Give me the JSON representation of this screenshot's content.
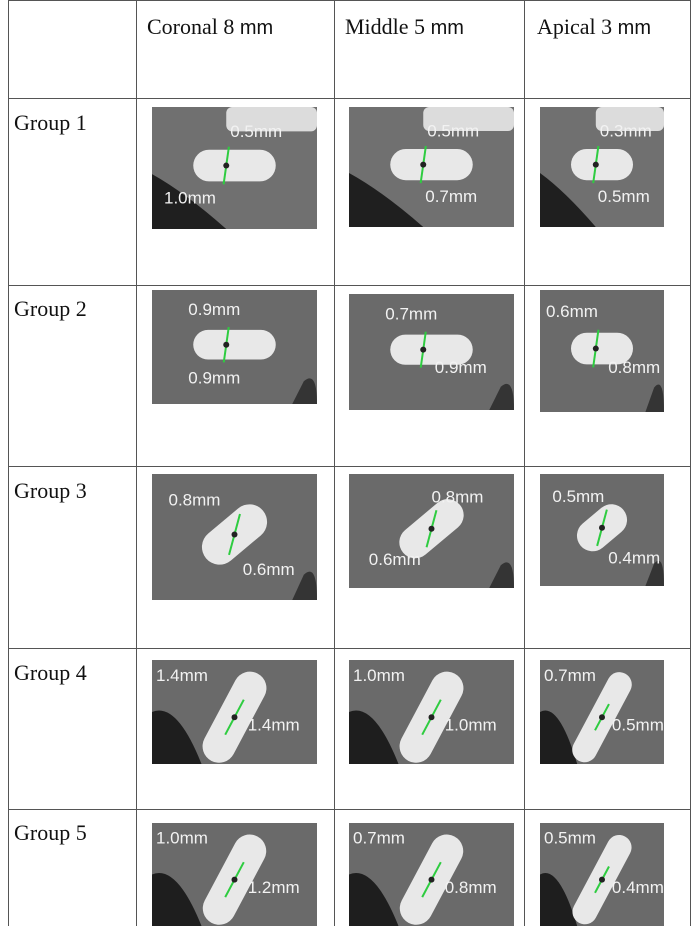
{
  "headers": [
    {
      "label": "Coronal 8",
      "unit": "mm"
    },
    {
      "label": "Middle 5",
      "unit": "mm"
    },
    {
      "label": "Apical 3",
      "unit": "mm"
    }
  ],
  "rows": [
    {
      "label": "Group 1",
      "cells": [
        {
          "top": "0.5mm",
          "bottom": "1.0mm"
        },
        {
          "top": "0.5mm",
          "bottom": "0.7mm"
        },
        {
          "top": "0.3mm",
          "bottom": "0.5mm"
        }
      ]
    },
    {
      "label": "Group 2",
      "cells": [
        {
          "top": "0.9mm",
          "bottom": "0.9mm"
        },
        {
          "top": "0.7mm",
          "bottom": "0.9mm"
        },
        {
          "top": "0.6mm",
          "bottom": "0.8mm"
        }
      ]
    },
    {
      "label": "Group 3",
      "cells": [
        {
          "top": "0.8mm",
          "bottom": "0.6mm"
        },
        {
          "top": "0.8mm",
          "bottom": "0.6mm"
        },
        {
          "top": "0.5mm",
          "bottom": "0.4mm"
        }
      ]
    },
    {
      "label": "Group 4",
      "cells": [
        {
          "top": "1.4mm",
          "bottom": "1.4mm"
        },
        {
          "top": "1.0mm",
          "bottom": "1.0mm"
        },
        {
          "top": "0.7mm",
          "bottom": "0.5mm"
        }
      ]
    },
    {
      "label": "Group 5",
      "cells": [
        {
          "top": "1.0mm",
          "bottom": "1.2mm"
        },
        {
          "top": "0.7mm",
          "bottom": "0.8mm"
        },
        {
          "top": "0.5mm",
          "bottom": "0.4mm"
        }
      ]
    }
  ]
}
